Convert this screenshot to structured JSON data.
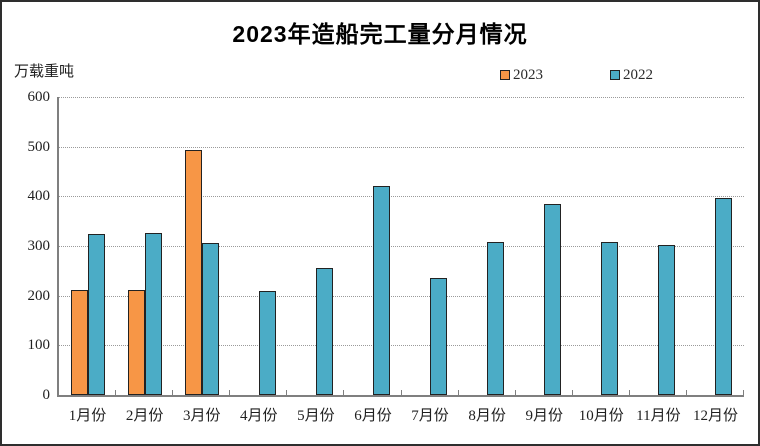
{
  "chart_data": {
    "type": "bar",
    "title": "2023年造船完工量分月情况",
    "unit_label": "万载重吨",
    "xlabel": "",
    "ylabel": "万载重吨",
    "categories": [
      "1月份",
      "2月份",
      "3月份",
      "4月份",
      "5月份",
      "6月份",
      "7月份",
      "8月份",
      "9月份",
      "10月份",
      "11月份",
      "12月份"
    ],
    "series": [
      {
        "name": "2023",
        "color": "#F79646",
        "values": [
          211,
          211,
          493,
          null,
          null,
          null,
          null,
          null,
          null,
          null,
          null,
          null
        ]
      },
      {
        "name": "2022",
        "color": "#4BACC6",
        "values": [
          325,
          327,
          307,
          209,
          255,
          421,
          235,
          309,
          385,
          308,
          303,
          396
        ]
      }
    ],
    "ylim": [
      0,
      600
    ],
    "yticks": [
      0,
      100,
      200,
      300,
      400,
      500,
      600
    ],
    "grid": "horizontal-dotted",
    "legend_position": "top-right",
    "bar_border_color": "#222222",
    "axis_color": "#7f7f7f",
    "text_color": "#1f1f1f"
  }
}
